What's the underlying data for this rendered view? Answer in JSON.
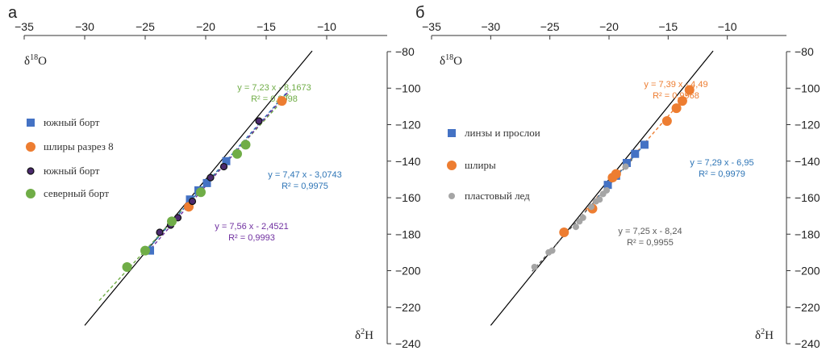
{
  "chart_data": [
    {
      "type": "scatter",
      "panel_label": "а",
      "xlabel_main": "δ",
      "xlabel_sup": "18",
      "xlabel_end": "O",
      "ylabel_main": "δ",
      "ylabel_sup": "2",
      "ylabel_end": "H",
      "xlim": [
        -35,
        -5
      ],
      "ylim": [
        -240,
        -80
      ],
      "x_ticks": [
        -35,
        -30,
        -25,
        -20,
        -15,
        -10
      ],
      "y_ticks": [
        -80,
        -100,
        -120,
        -140,
        -160,
        -180,
        -200,
        -220,
        -240
      ],
      "gmwl": {
        "slope": 8,
        "intercept": 10,
        "x_range": [
          -30,
          -11.2
        ]
      },
      "legend": [
        {
          "name": "южный борт",
          "marker": "square",
          "color": "#4472C4"
        },
        {
          "name": "шлиры разрез 8",
          "marker": "circle",
          "color": "#ED7D31"
        },
        {
          "name": "южный борт",
          "marker": "circle-dark",
          "color": "#2E1A47"
        },
        {
          "name": "северный борт",
          "marker": "circle",
          "color": "#70AD47"
        }
      ],
      "series": [
        {
          "name": "южный борт",
          "marker": "square",
          "color": "#4472C4",
          "points": [
            [
              -24.6,
              -189
            ],
            [
              -21.3,
              -161
            ],
            [
              -20.6,
              -156
            ],
            [
              -19.9,
              -152
            ],
            [
              -18.3,
              -140
            ]
          ]
        },
        {
          "name": "шлиры разрез 8",
          "marker": "circle",
          "color": "#ED7D31",
          "points": [
            [
              -21.4,
              -165
            ],
            [
              -13.7,
              -107
            ]
          ]
        },
        {
          "name": "южный борт",
          "marker": "circle-dark",
          "color": "#3B1E5A",
          "points": [
            [
              -23.8,
              -179
            ],
            [
              -22.9,
              -175
            ],
            [
              -22.3,
              -171
            ],
            [
              -21.1,
              -162
            ],
            [
              -19.6,
              -149
            ],
            [
              -18.5,
              -143
            ],
            [
              -15.6,
              -118
            ]
          ]
        },
        {
          "name": "северный борт",
          "marker": "circle",
          "color": "#70AD47",
          "points": [
            [
              -26.5,
              -198
            ],
            [
              -25.0,
              -189
            ],
            [
              -22.8,
              -173
            ],
            [
              -20.4,
              -157
            ],
            [
              -17.4,
              -136
            ],
            [
              -16.7,
              -131
            ]
          ]
        }
      ],
      "fits": [
        {
          "color": "#70AD47",
          "slope": 7.23,
          "intercept": -8.1673,
          "x_range": [
            -28.8,
            -13.0
          ],
          "equation": "y = 7,23 x - 8,1673",
          "r2": "R² = 0,9998"
        },
        {
          "color": "#2E75B6",
          "slope": 7.47,
          "intercept": -3.0743,
          "x_range": [
            -25.0,
            -13.2
          ],
          "equation": "y = 7,47 x - 3,0743",
          "r2": "R² = 0,9975"
        },
        {
          "color": "#7030A0",
          "slope": 7.56,
          "intercept": -2.4521,
          "x_range": [
            -24.5,
            -13.2
          ],
          "equation": "y = 7,56 x - 2,4521",
          "r2": "R² = 0,9993"
        }
      ]
    },
    {
      "type": "scatter",
      "panel_label": "б",
      "xlabel_main": "δ",
      "xlabel_sup": "18",
      "xlabel_end": "O",
      "ylabel_main": "δ",
      "ylabel_sup": "2",
      "ylabel_end": "H",
      "xlim": [
        -35,
        -5
      ],
      "ylim": [
        -240,
        -80
      ],
      "x_ticks": [
        -35,
        -30,
        -25,
        -20,
        -15,
        -10
      ],
      "y_ticks": [
        -80,
        -100,
        -120,
        -140,
        -160,
        -180,
        -200,
        -220,
        -240
      ],
      "gmwl": {
        "slope": 8,
        "intercept": 10,
        "x_range": [
          -30,
          -11.2
        ]
      },
      "legend": [
        {
          "name": "линзы и прослои",
          "marker": "square",
          "color": "#4472C4"
        },
        {
          "name": "шлиры",
          "marker": "circle",
          "color": "#ED7D31"
        },
        {
          "name": "пластовый лед",
          "marker": "circle-small",
          "color": "#A5A5A5"
        }
      ],
      "series": [
        {
          "name": "линзы и прослои",
          "marker": "square",
          "color": "#4472C4",
          "points": [
            [
              -20.1,
              -153
            ],
            [
              -19.4,
              -148
            ],
            [
              -18.5,
              -141
            ],
            [
              -17.8,
              -136
            ],
            [
              -17.0,
              -131
            ]
          ]
        },
        {
          "name": "шлиры",
          "marker": "circle",
          "color": "#ED7D31",
          "points": [
            [
              -23.8,
              -179
            ],
            [
              -21.4,
              -166
            ],
            [
              -19.7,
              -149
            ],
            [
              -19.4,
              -147
            ],
            [
              -15.1,
              -118
            ],
            [
              -14.3,
              -111
            ],
            [
              -13.8,
              -107
            ],
            [
              -13.2,
              -101
            ]
          ]
        },
        {
          "name": "пластовый лед",
          "marker": "circle-small",
          "color": "#A5A5A5",
          "points": [
            [
              -26.3,
              -198
            ],
            [
              -25.1,
              -190
            ],
            [
              -24.8,
              -189
            ],
            [
              -22.8,
              -176
            ],
            [
              -22.5,
              -173
            ],
            [
              -22.2,
              -171
            ],
            [
              -21.5,
              -165
            ],
            [
              -21.1,
              -162
            ],
            [
              -20.8,
              -161
            ],
            [
              -20.5,
              -158
            ],
            [
              -20.2,
              -156
            ],
            [
              -18.6,
              -143
            ]
          ]
        }
      ],
      "fits": [
        {
          "color": "#ED7D31",
          "slope": 7.39,
          "intercept": -4.49,
          "x_range": [
            -22.0,
            -12.8
          ],
          "equation": "y = 7,39 x - 4,49",
          "r2": "R² = 0,9968"
        },
        {
          "color": "#2E75B6",
          "slope": 7.29,
          "intercept": -6.95,
          "x_range": [
            -21.0,
            -16.8
          ],
          "equation": "y = 7,29 x - 6,95",
          "r2": "R² = 0,9979"
        },
        {
          "color": "#595959",
          "slope": 7.25,
          "intercept": -8.24,
          "x_range": [
            -26.5,
            -18.0
          ],
          "equation": "y = 7,25 x - 8,24",
          "r2": "R² = 0,9955"
        }
      ]
    }
  ]
}
